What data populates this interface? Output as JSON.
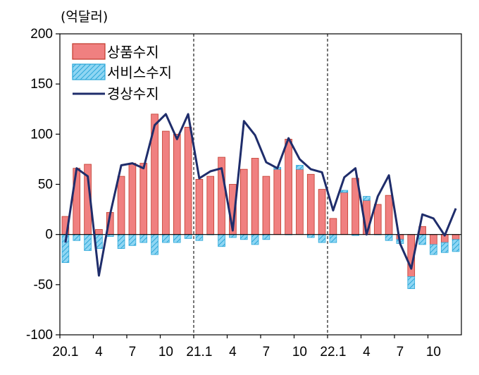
{
  "chart_data": {
    "type": "bar+line",
    "unit_label": "(억달러)",
    "x_tick_labels": [
      "20.1",
      "4",
      "7",
      "10",
      "21.1",
      "4",
      "7",
      "10",
      "22.1",
      "4",
      "7",
      "10"
    ],
    "x_tick_months": [
      0,
      3,
      6,
      9,
      12,
      15,
      18,
      21,
      24,
      27,
      30,
      33
    ],
    "x": [
      "20.1",
      "20.2",
      "20.3",
      "20.4",
      "20.5",
      "20.6",
      "20.7",
      "20.8",
      "20.9",
      "20.10",
      "20.11",
      "20.12",
      "21.1",
      "21.2",
      "21.3",
      "21.4",
      "21.5",
      "21.6",
      "21.7",
      "21.8",
      "21.9",
      "21.10",
      "21.11",
      "21.12",
      "22.1",
      "22.2",
      "22.3",
      "22.4",
      "22.5",
      "22.6",
      "22.7",
      "22.8",
      "22.9",
      "22.10",
      "22.11",
      "22.12"
    ],
    "ylim": [
      -100,
      200
    ],
    "y_ticks": [
      -100,
      -50,
      0,
      50,
      100,
      150,
      200
    ],
    "dividers_after": [
      "20.12",
      "21.12"
    ],
    "legend_position": "top-left",
    "series": [
      {
        "name": "상품수지",
        "type": "bar",
        "color": "#f08080",
        "values": [
          18,
          66,
          70,
          5,
          22,
          58,
          71,
          71,
          120,
          103,
          100,
          107,
          55,
          58,
          77,
          50,
          65,
          76,
          58,
          65,
          95,
          65,
          60,
          45,
          16,
          42,
          56,
          34,
          30,
          39,
          -5,
          -42,
          8,
          -10,
          -8,
          -5
        ]
      },
      {
        "name": "서비스수지",
        "type": "bar",
        "color": "#5bc0e8",
        "values": [
          -28,
          -6,
          -16,
          -14,
          -2,
          -14,
          -11,
          -8,
          -20,
          -8,
          -8,
          -4,
          -6,
          0,
          -12,
          -3,
          -5,
          -10,
          -5,
          2,
          0,
          4,
          -3,
          -8,
          -8,
          2,
          -1,
          4,
          0,
          -6,
          -4,
          -12,
          -10,
          -10,
          -10,
          -12
        ]
      },
      {
        "name": "경상수지",
        "type": "line",
        "color": "#1f2d6b",
        "values": [
          -8,
          66,
          58,
          -41,
          20,
          69,
          71,
          66,
          109,
          120,
          95,
          120,
          56,
          63,
          66,
          4,
          113,
          99,
          72,
          66,
          96,
          75,
          65,
          62,
          24,
          57,
          66,
          0,
          38,
          59,
          -9,
          -34,
          20,
          16,
          -1,
          26
        ]
      }
    ]
  }
}
